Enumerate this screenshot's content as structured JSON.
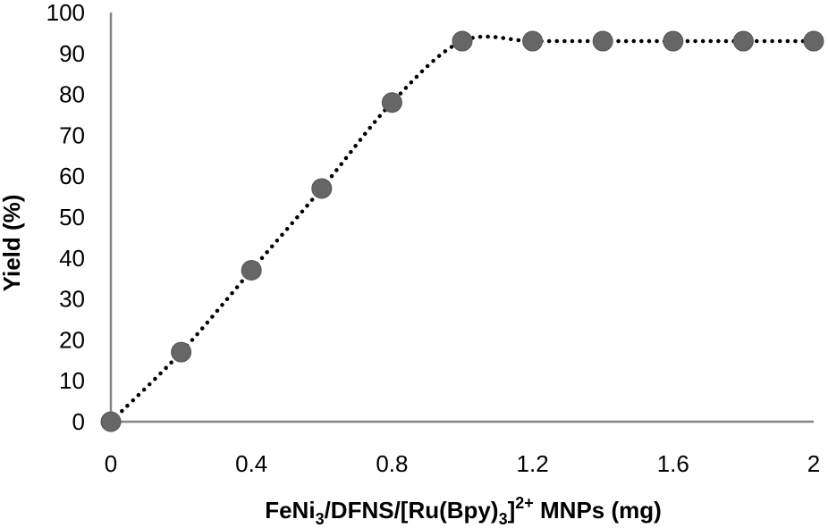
{
  "chart_data": {
    "type": "scatter",
    "title": "",
    "xlabel": {
      "main": "FeNi",
      "sub1": "3",
      "mid": "/DFNS/[Ru(Bpy)",
      "sub2": "3",
      "close": "]",
      "sup": "2+",
      "tail": " MNPs (mg)"
    },
    "ylabel": "Yield (%)",
    "xlim": [
      0,
      2
    ],
    "ylim": [
      0,
      100
    ],
    "x_ticks": [
      "0",
      "0.4",
      "0.8",
      "1.2",
      "1.6",
      "2"
    ],
    "y_ticks": [
      "0",
      "10",
      "20",
      "30",
      "40",
      "50",
      "60",
      "70",
      "80",
      "90",
      "100"
    ],
    "series": [
      {
        "x": [
          0,
          0.2,
          0.4,
          0.6,
          0.8,
          1.0,
          1.2,
          1.4,
          1.6,
          1.8,
          2.0
        ],
        "y": [
          0,
          17,
          37,
          57,
          78,
          93,
          93,
          93,
          93,
          93,
          93
        ]
      }
    ],
    "trendline": {
      "style": "dotted",
      "color": "#000000"
    },
    "marker_color": "#666666",
    "marker_edge": "#555555",
    "axis_color": "#868686",
    "grid": false,
    "legend": "none"
  }
}
